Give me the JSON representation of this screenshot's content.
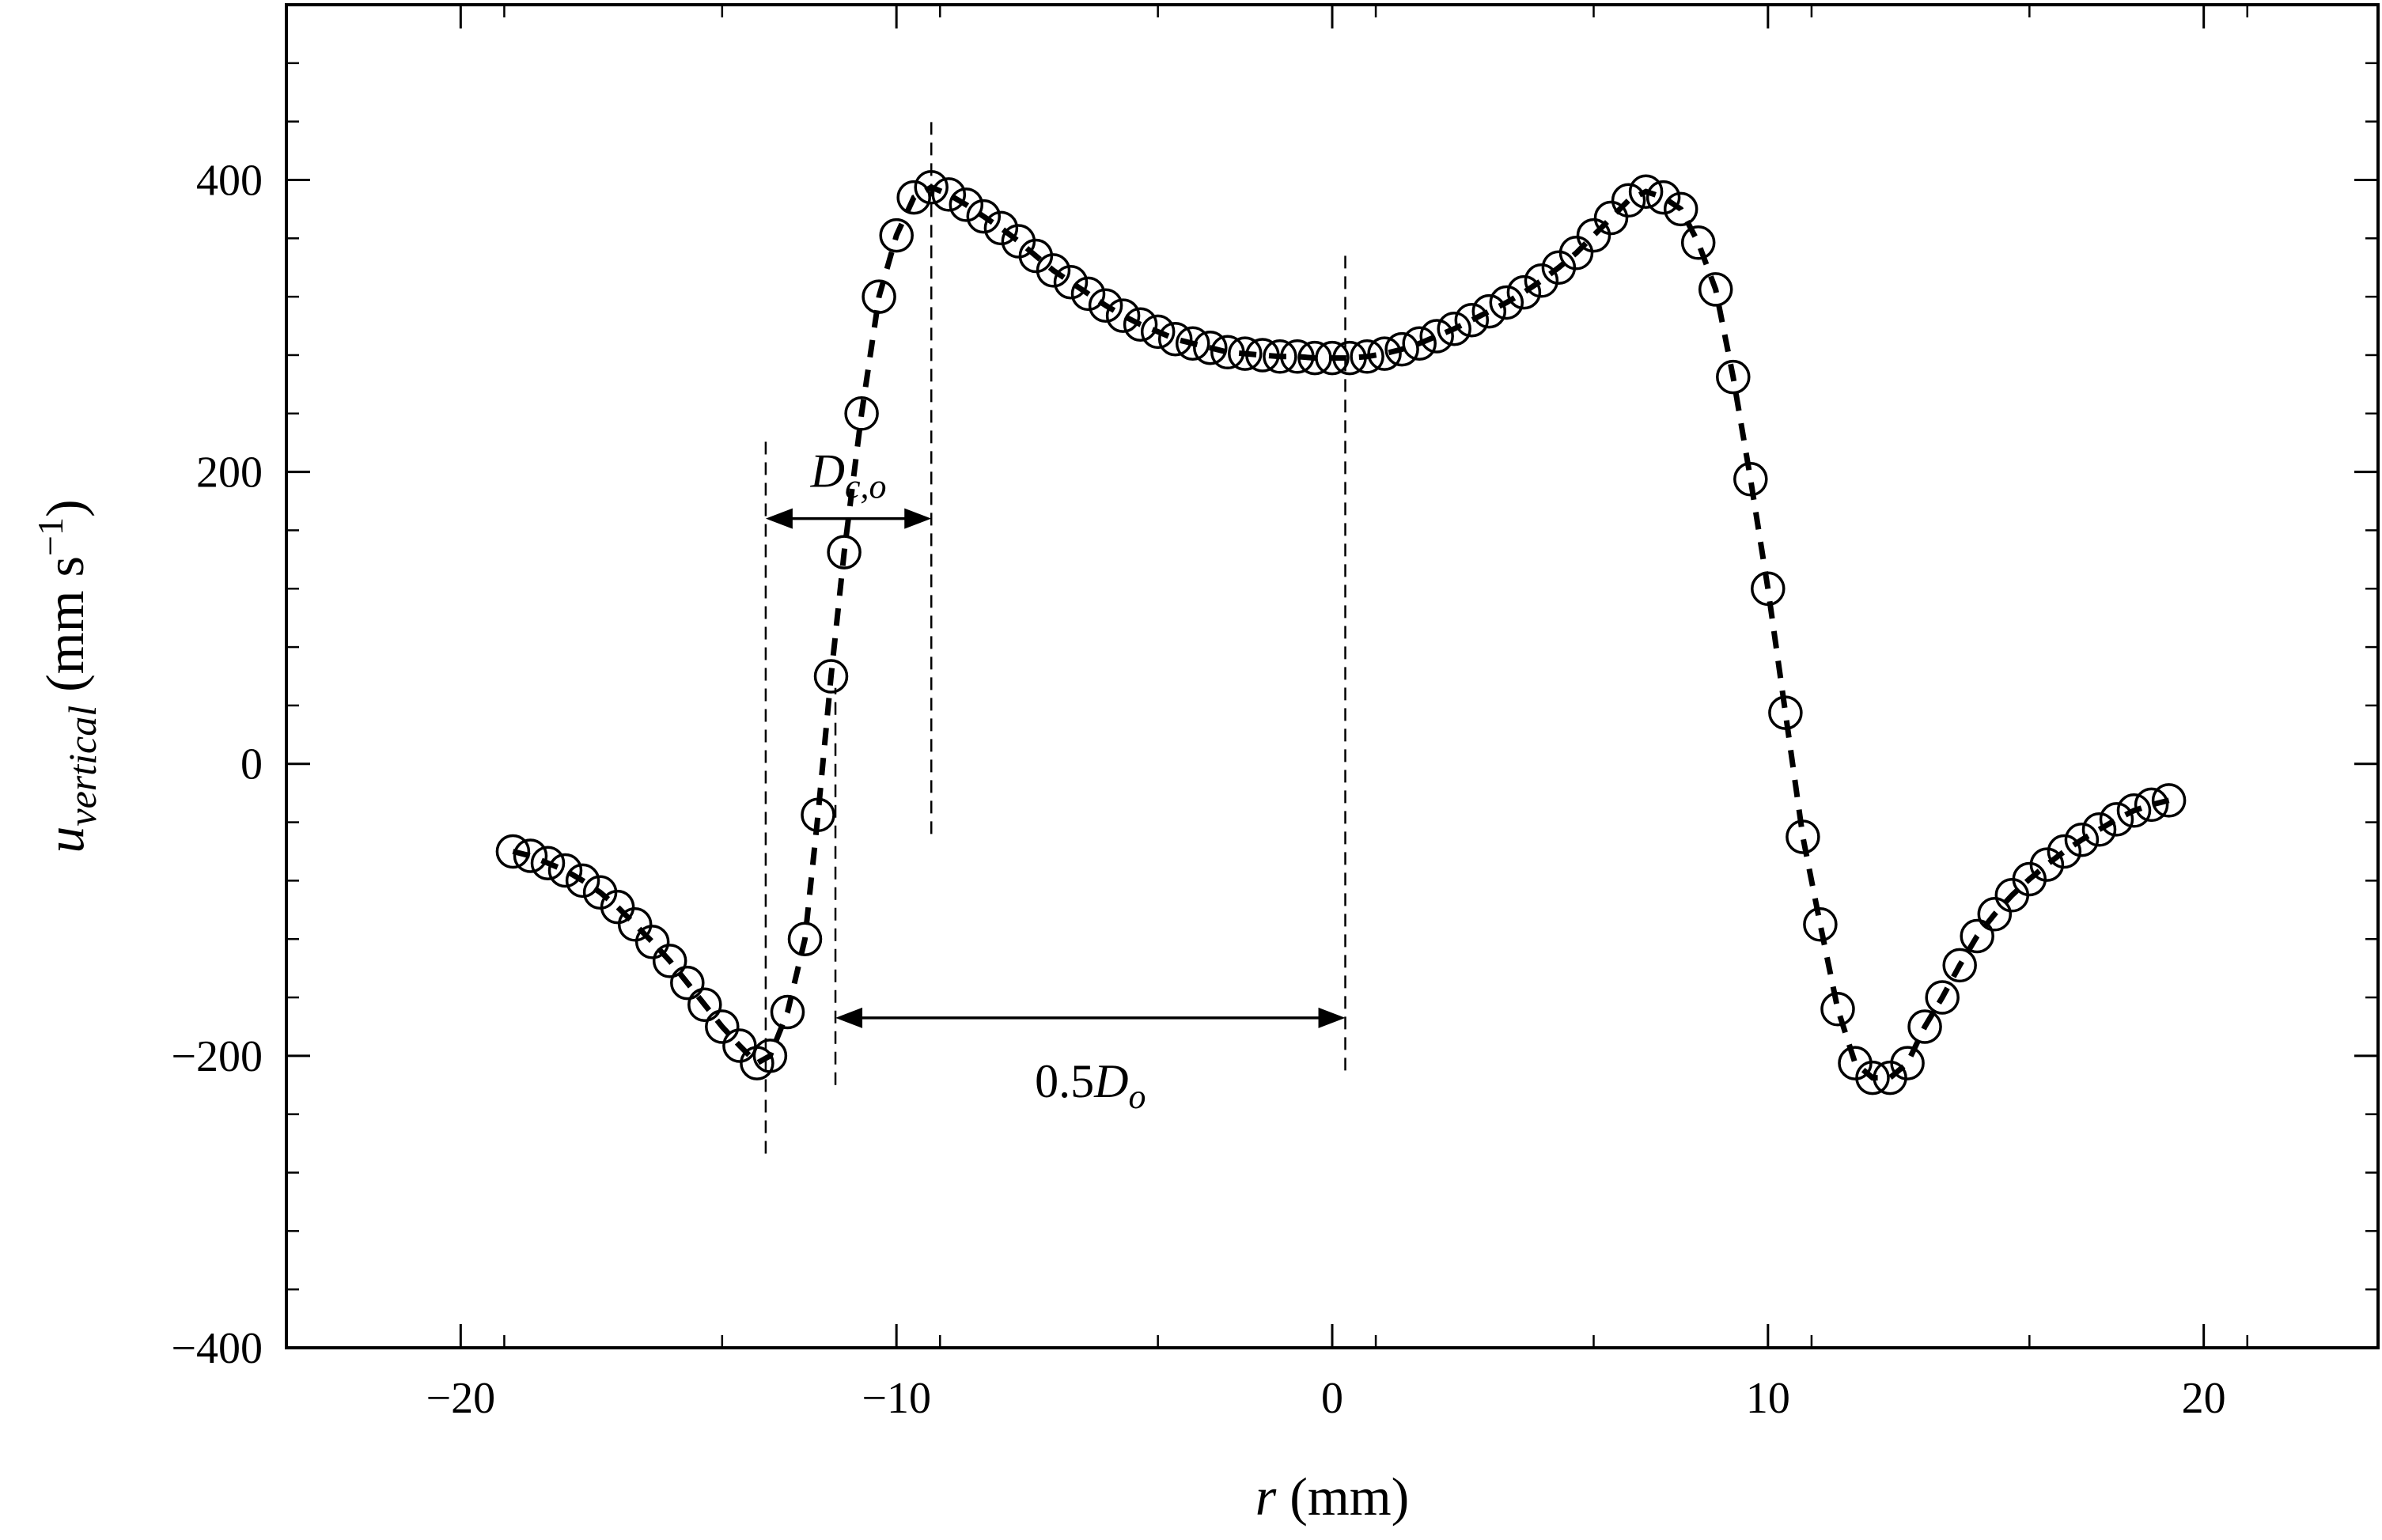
{
  "chart_data": {
    "type": "scatter",
    "xlabel": {
      "var": "r",
      "unit": " (mm)"
    },
    "ylabel": {
      "var": "u",
      "sub": "vertical",
      "unit_open": " (mm s",
      "sup": "−1",
      "unit_close": ")"
    },
    "xlim": [
      -24,
      24
    ],
    "ylim": [
      -400,
      520
    ],
    "x_ticks": [
      -20,
      -10,
      0,
      10,
      20
    ],
    "x_tick_labels": [
      "−20",
      "−10",
      "0",
      "10",
      "20"
    ],
    "y_ticks": [
      -400,
      -200,
      0,
      200,
      400
    ],
    "y_tick_labels": [
      "−400",
      "−200",
      "0",
      "200",
      "400"
    ],
    "grid": false,
    "marker": "open-circle",
    "line_style": "dashed",
    "series": [
      {
        "x": [
          -18.8,
          -18.4,
          -18.0,
          -17.6,
          -17.2,
          -16.8,
          -16.4,
          -16.0,
          -15.6,
          -15.2,
          -14.8,
          -14.4,
          -14.0,
          -13.6,
          -13.2,
          -12.9,
          -12.5,
          -12.1,
          -11.8,
          -11.5,
          -11.2,
          -10.8,
          -10.4,
          -10.0,
          -9.6,
          -9.2,
          -8.8,
          -8.4,
          -8.0,
          -7.6,
          -7.2,
          -6.8,
          -6.4,
          -6.0,
          -5.6,
          -5.2,
          -4.8,
          -4.4,
          -4.0,
          -3.6,
          -3.2,
          -2.8,
          -2.4,
          -2.0,
          -1.6,
          -1.2,
          -0.8,
          -0.4,
          0.0,
          0.4,
          0.8,
          1.2,
          1.6,
          2.0,
          2.4,
          2.8,
          3.2,
          3.6,
          4.0,
          4.4,
          4.8,
          5.2,
          5.6,
          6.0,
          6.4,
          6.8,
          7.2,
          7.6,
          8.0,
          8.4,
          8.8,
          9.2,
          9.6,
          10.0,
          10.4,
          10.8,
          11.2,
          11.6,
          12.0,
          12.4,
          12.8,
          13.2,
          13.6,
          14.0,
          14.4,
          14.8,
          15.2,
          15.6,
          16.0,
          16.4,
          16.8,
          17.2,
          17.6,
          18.0,
          18.4,
          18.8,
          19.2
        ],
        "y": [
          -60,
          -63,
          -68,
          -73,
          -80,
          -88,
          -98,
          -110,
          -122,
          -135,
          -150,
          -165,
          -180,
          -193,
          -205,
          -200,
          -170,
          -120,
          -35,
          60,
          145,
          240,
          320,
          362,
          388,
          395,
          390,
          383,
          375,
          367,
          358,
          348,
          338,
          330,
          322,
          314,
          307,
          301,
          296,
          291,
          288,
          285,
          282,
          281,
          280,
          279,
          279,
          278,
          278,
          278,
          279,
          281,
          284,
          288,
          293,
          298,
          304,
          310,
          316,
          323,
          331,
          340,
          350,
          362,
          374,
          386,
          392,
          388,
          380,
          357,
          325,
          265,
          195,
          120,
          35,
          -50,
          -110,
          -168,
          -205,
          -215,
          -215,
          -205,
          -180,
          -160,
          -138,
          -118,
          -103,
          -90,
          -79,
          -69,
          -60,
          -52,
          -45,
          -38,
          -32,
          -28,
          -25
        ]
      }
    ],
    "annotations": [
      {
        "name": "D_co",
        "label_main": "D",
        "label_sub": "c,o",
        "from_x": -13.0,
        "to_x": -9.2,
        "at_y": 168
      },
      {
        "name": "half_Do",
        "label_prefix": "0.5",
        "label_main": "D",
        "label_sub": "o",
        "from_x": -11.4,
        "to_x": 0.3,
        "at_y": -174
      }
    ],
    "vertical_guides": [
      {
        "x": -13.0,
        "y_from": -267,
        "y_to": 225
      },
      {
        "x": -11.4,
        "y_from": -220,
        "y_to": 52
      },
      {
        "x": -9.2,
        "y_from": -48,
        "y_to": 442
      },
      {
        "x": 0.3,
        "y_from": -210,
        "y_to": 352
      }
    ]
  }
}
